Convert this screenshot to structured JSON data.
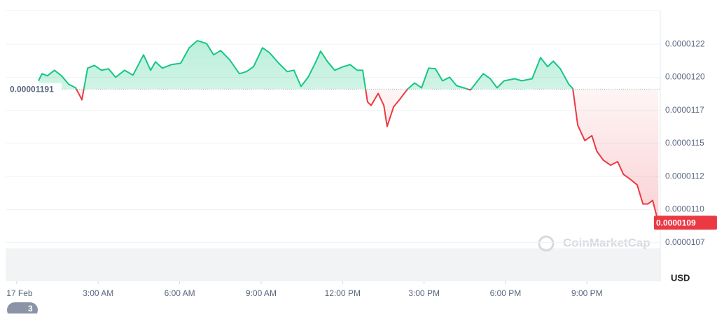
{
  "chart_data": {
    "type": "line",
    "x": [
      0.8,
      0.93,
      1.13,
      1.39,
      1.65,
      1.91,
      2.17,
      2.4,
      2.61,
      2.86,
      3.12,
      3.38,
      3.64,
      3.97,
      4.28,
      4.67,
      4.93,
      5.11,
      5.36,
      5.7,
      6.04,
      6.35,
      6.65,
      6.99,
      7.25,
      7.51,
      7.84,
      8.2,
      8.46,
      8.72,
      9.05,
      9.31,
      9.65,
      9.96,
      10.21,
      10.47,
      10.73,
      10.99,
      11.19,
      11.45,
      11.71,
      12.02,
      12.28,
      12.54,
      12.74,
      12.92,
      13.05,
      13.31,
      13.52,
      13.64,
      13.88,
      14.13,
      14.39,
      14.65,
      14.91,
      15.17,
      15.42,
      15.68,
      15.94,
      16.2,
      16.46,
      16.71,
      17.18,
      17.44,
      17.69,
      17.95,
      18.34,
      18.6,
      18.98,
      19.29,
      19.55,
      19.76,
      20.02,
      20.33,
      20.48,
      20.66,
      20.92,
      21.18,
      21.36,
      21.61,
      21.87,
      22.13,
      22.34,
      22.59,
      22.85,
      23.06,
      23.24,
      23.42,
      23.63
    ],
    "values": [
      1.1973e-05,
      1.2027e-05,
      1.2011e-05,
      1.2053e-05,
      1.2011e-05,
      1.1947e-05,
      1.192e-05,
      1.183e-05,
      1.2069e-05,
      1.209e-05,
      1.2053e-05,
      1.2064e-05,
      1.2e-05,
      1.2053e-05,
      1.2016e-05,
      1.217e-05,
      1.2053e-05,
      1.2117e-05,
      1.2069e-05,
      1.2096e-05,
      1.2106e-05,
      1.2223e-05,
      1.2277e-05,
      1.2255e-05,
      1.217e-05,
      1.2202e-05,
      1.2133e-05,
      1.2027e-05,
      1.2043e-05,
      1.208e-05,
      1.2223e-05,
      1.2186e-05,
      1.2106e-05,
      1.2043e-05,
      1.2053e-05,
      1.1931e-05,
      1.2e-05,
      1.2106e-05,
      1.2197e-05,
      1.2117e-05,
      1.2053e-05,
      1.208e-05,
      1.2096e-05,
      1.2053e-05,
      1.2053e-05,
      1.1814e-05,
      1.1787e-05,
      1.1878e-05,
      1.1787e-05,
      1.1628e-05,
      1.1777e-05,
      1.184e-05,
      1.191e-05,
      1.1957e-05,
      1.192e-05,
      1.2069e-05,
      1.2064e-05,
      1.1973e-05,
      1.2e-05,
      1.1936e-05,
      1.192e-05,
      1.1904e-05,
      1.2027e-05,
      1.1989e-05,
      1.192e-05,
      1.1973e-05,
      1.1989e-05,
      1.1973e-05,
      1.1989e-05,
      1.2149e-05,
      1.208e-05,
      1.2122e-05,
      1.2064e-05,
      1.1947e-05,
      1.1915e-05,
      1.1638e-05,
      1.1521e-05,
      1.1558e-05,
      1.1441e-05,
      1.1372e-05,
      1.1335e-05,
      1.1362e-05,
      1.1266e-05,
      1.1229e-05,
      1.1186e-05,
      1.1042e-05,
      1.1042e-05,
      1.1069e-05,
      1.09e-05
    ],
    "up_color": "#16c784",
    "down_color": "#ea3943",
    "baseline": 1.191e-05,
    "current_price": 1.09e-05,
    "xlim": [
      -0.41,
      23.7
    ],
    "xticks": [
      {
        "value": 0,
        "label": "17 Feb"
      },
      {
        "value": 3,
        "label": "3:00 AM"
      },
      {
        "value": 6,
        "label": "6:00 AM"
      },
      {
        "value": 9,
        "label": "9:00 AM"
      },
      {
        "value": 12,
        "label": "12:00 PM"
      },
      {
        "value": 15,
        "label": "3:00 PM"
      },
      {
        "value": 18,
        "label": "6:00 PM"
      },
      {
        "value": 21,
        "label": "9:00 PM"
      }
    ],
    "ylim": [
      1.0457e-05,
      1.2505e-05
    ],
    "yticks": [
      {
        "value": 1.225e-05,
        "label": "0.0000122"
      },
      {
        "value": 1.2e-05,
        "label": "0.0000120"
      },
      {
        "value": 1.175e-05,
        "label": "0.0000117"
      },
      {
        "value": 1.15e-05,
        "label": "0.0000115"
      },
      {
        "value": 1.125e-05,
        "label": "0.0000112"
      },
      {
        "value": 1.1e-05,
        "label": "0.0000110"
      },
      {
        "value": 1.075e-05,
        "label": "0.0000107"
      }
    ],
    "grid": true,
    "watermark": "CoinMarketCap",
    "currency": "USD",
    "badge": "3"
  }
}
